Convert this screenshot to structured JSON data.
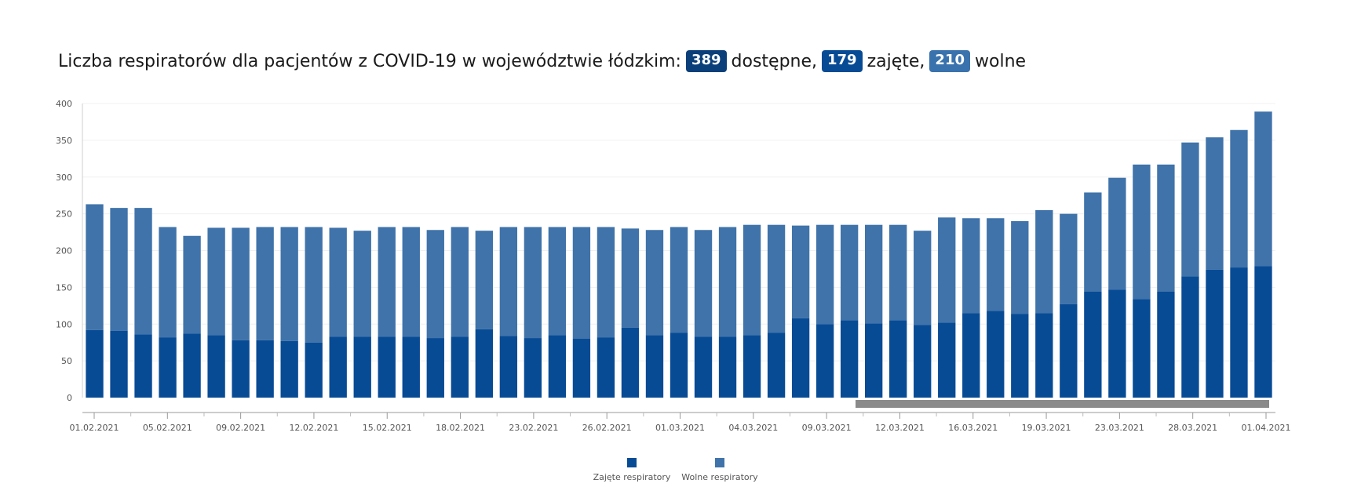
{
  "title": {
    "prefix": "Liczba respiratorów dla pacjentów z COVID-19 w województwie łódzkim:",
    "available_value": "389",
    "available_label": "dostępne,",
    "occupied_value": "179",
    "occupied_label": "zajęte,",
    "free_value": "210",
    "free_label": "wolne"
  },
  "colors": {
    "occupied": "#084b95",
    "free": "#3f73aa",
    "badge_available": "#0b3f7a",
    "scrollbar": "#8a8a8a"
  },
  "legend": [
    {
      "name": "Zajęte respiratory",
      "color": "#084b95"
    },
    {
      "name": "Wolne respiratory",
      "color": "#3f73aa"
    }
  ],
  "chart_data": {
    "type": "bar",
    "stacked": true,
    "ylim": [
      0,
      400
    ],
    "yticks": [
      0,
      50,
      100,
      150,
      200,
      250,
      300,
      350,
      400
    ],
    "grid": true,
    "legend_position": "bottom",
    "x_tick_labels": [
      "01.02.2021",
      "05.02.2021",
      "09.02.2021",
      "12.02.2021",
      "15.02.2021",
      "18.02.2021",
      "23.02.2021",
      "26.02.2021",
      "01.03.2021",
      "04.03.2021",
      "09.03.2021",
      "12.03.2021",
      "16.03.2021",
      "19.03.2021",
      "23.03.2021",
      "28.03.2021",
      "01.04.2021"
    ],
    "series": [
      {
        "name": "Zajęte respiratory",
        "values": [
          92,
          91,
          86,
          82,
          87,
          85,
          78,
          78,
          77,
          75,
          83,
          83,
          83,
          83,
          81,
          83,
          93,
          84,
          81,
          85,
          80,
          82,
          95,
          85,
          88,
          83,
          83,
          85,
          88,
          108,
          100,
          105,
          101,
          105,
          99,
          102,
          115,
          118,
          114,
          115,
          127,
          144,
          147,
          134,
          144,
          165,
          174,
          177,
          179
        ]
      },
      {
        "name": "Wolne respiratory",
        "values": [
          171,
          167,
          172,
          150,
          133,
          146,
          153,
          154,
          155,
          157,
          148,
          144,
          149,
          149,
          147,
          149,
          134,
          148,
          151,
          147,
          152,
          150,
          135,
          143,
          144,
          145,
          149,
          150,
          147,
          126,
          135,
          130,
          134,
          130,
          128,
          143,
          129,
          126,
          126,
          140,
          123,
          135,
          152,
          183,
          173,
          182,
          180,
          187,
          210
        ]
      }
    ]
  }
}
